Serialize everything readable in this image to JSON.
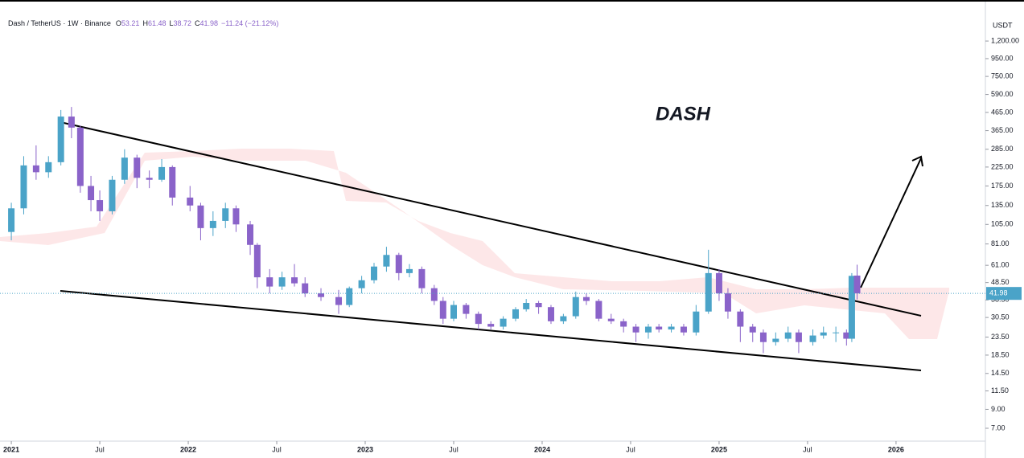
{
  "chart_data": {
    "type": "candlestick",
    "title": "Dash / TetherUS · 1W · Binance",
    "ohlc_letters": [
      "O",
      "H",
      "L",
      "C"
    ],
    "change_label": "−11.24 (−21.12%)",
    "annotation": "DASH",
    "currency": "USDT",
    "up_color": "#4aa3c8",
    "down_color": "#8a63c9",
    "log_scale": true,
    "candles": {
      "x": [
        2021.0,
        2021.07,
        2021.14,
        2021.21,
        2021.28,
        2021.34,
        2021.39,
        2021.45,
        2021.5,
        2021.57,
        2021.64,
        2021.71,
        2021.78,
        2021.85,
        2021.91,
        2022.01,
        2022.07,
        2022.14,
        2022.21,
        2022.27,
        2022.35,
        2022.39,
        2022.46,
        2022.53,
        2022.6,
        2022.66,
        2022.75,
        2022.85,
        2022.91,
        2022.98,
        2023.05,
        2023.12,
        2023.19,
        2023.25,
        2023.32,
        2023.39,
        2023.44,
        2023.5,
        2023.57,
        2023.64,
        2023.71,
        2023.78,
        2023.85,
        2023.91,
        2023.98,
        2024.05,
        2024.12,
        2024.19,
        2024.25,
        2024.32,
        2024.39,
        2024.46,
        2024.53,
        2024.6,
        2024.66,
        2024.73,
        2024.8,
        2024.87,
        2024.94,
        2025.0,
        2025.05,
        2025.12,
        2025.19,
        2025.25,
        2025.32,
        2025.39,
        2025.45,
        2025.53,
        2025.59,
        2025.66,
        2025.72,
        2025.75,
        2025.78
      ],
      "open": [
        95,
        130,
        230,
        210,
        240,
        440,
        380,
        175,
        145,
        125,
        190,
        255,
        195,
        190,
        225,
        150,
        135,
        100,
        110,
        130,
        105,
        80,
        52,
        46,
        52,
        48,
        42,
        40,
        36,
        45,
        50,
        60,
        70,
        55,
        58,
        45,
        38,
        30,
        36,
        32,
        28,
        27,
        30,
        34,
        37,
        35,
        29,
        31,
        40,
        38,
        30,
        29,
        27,
        25,
        27,
        26,
        27,
        25,
        33,
        55,
        42,
        33,
        27,
        25,
        22,
        23,
        25,
        22,
        24,
        25,
        25,
        23,
        53.21
      ],
      "high": [
        140,
        260,
        300,
        260,
        480,
        500,
        390,
        200,
        165,
        200,
        285,
        265,
        215,
        250,
        230,
        175,
        140,
        125,
        140,
        135,
        110,
        82,
        58,
        56,
        62,
        52,
        45,
        44,
        46,
        53,
        63,
        78,
        72,
        62,
        60,
        47,
        40,
        38,
        37,
        33,
        29,
        31,
        35,
        39,
        38,
        36,
        32,
        43,
        42,
        39,
        32,
        30,
        28,
        28,
        28,
        28,
        28,
        36,
        75,
        58,
        45,
        34,
        28,
        26,
        25,
        27,
        26,
        26,
        27,
        27,
        26,
        55,
        61.48
      ],
      "low": [
        85,
        120,
        190,
        195,
        230,
        330,
        160,
        125,
        110,
        120,
        180,
        170,
        170,
        185,
        135,
        125,
        85,
        90,
        100,
        95,
        70,
        45,
        42,
        44,
        46,
        40,
        38,
        32,
        35,
        42,
        48,
        56,
        50,
        52,
        42,
        36,
        28,
        29,
        30,
        26,
        26,
        26,
        29,
        33,
        32,
        28,
        28,
        30,
        36,
        29,
        28,
        25,
        22,
        23,
        25,
        25,
        24,
        24,
        32,
        38,
        30,
        22,
        22,
        19,
        21,
        22,
        19,
        21,
        23,
        22,
        21,
        22,
        38.72
      ],
      "close": [
        130,
        230,
        210,
        240,
        440,
        380,
        175,
        145,
        125,
        190,
        255,
        195,
        190,
        225,
        150,
        135,
        100,
        110,
        130,
        105,
        80,
        52,
        46,
        52,
        48,
        42,
        40,
        36,
        45,
        50,
        60,
        70,
        55,
        58,
        45,
        38,
        30,
        36,
        32,
        28,
        27,
        30,
        34,
        37,
        35,
        29,
        31,
        40,
        38,
        30,
        29,
        27,
        25,
        27,
        26,
        27,
        25,
        33,
        55,
        42,
        33,
        27,
        25,
        22,
        23,
        25,
        22,
        24,
        25,
        25,
        23,
        53,
        41.98
      ]
    },
    "xlim": [
      2020.936,
      2026.505
    ],
    "xticks": [
      {
        "value": 2021,
        "label": "2021"
      },
      {
        "value": 2021.5,
        "label": "Jul"
      },
      {
        "value": 2022,
        "label": "2022"
      },
      {
        "value": 2022.5,
        "label": "Jul"
      },
      {
        "value": 2023,
        "label": "2023"
      },
      {
        "value": 2023.5,
        "label": "Jul"
      },
      {
        "value": 2024,
        "label": "2024"
      },
      {
        "value": 2024.5,
        "label": "Jul"
      },
      {
        "value": 2025,
        "label": "2025"
      },
      {
        "value": 2025.5,
        "label": "Jul"
      },
      {
        "value": 2026,
        "label": "2026"
      }
    ],
    "ylim": [
      5.9,
      1672
    ],
    "yticks": [
      {
        "value": 1200,
        "label": "1,200.00"
      },
      {
        "value": 950,
        "label": "950.00"
      },
      {
        "value": 750,
        "label": "750.00"
      },
      {
        "value": 590,
        "label": "590.00"
      },
      {
        "value": 465,
        "label": "465.00"
      },
      {
        "value": 365,
        "label": "365.00"
      },
      {
        "value": 285,
        "label": "285.00"
      },
      {
        "value": 225,
        "label": "225.00"
      },
      {
        "value": 175,
        "label": "175.00"
      },
      {
        "value": 135,
        "label": "135.00"
      },
      {
        "value": 105,
        "label": "105.00"
      },
      {
        "value": 81,
        "label": "81.00"
      },
      {
        "value": 61,
        "label": "61.00"
      },
      {
        "value": 48.5,
        "label": "48.50"
      },
      {
        "value": 38.5,
        "label": "38.50"
      },
      {
        "value": 30.5,
        "label": "30.50"
      },
      {
        "value": 23.5,
        "label": "23.50"
      },
      {
        "value": 18.5,
        "label": "18.50"
      },
      {
        "value": 14.5,
        "label": "14.50"
      },
      {
        "value": 11.5,
        "label": "11.50"
      },
      {
        "value": 9,
        "label": "9.00"
      },
      {
        "value": 7,
        "label": "7.00"
      }
    ]
  }
}
